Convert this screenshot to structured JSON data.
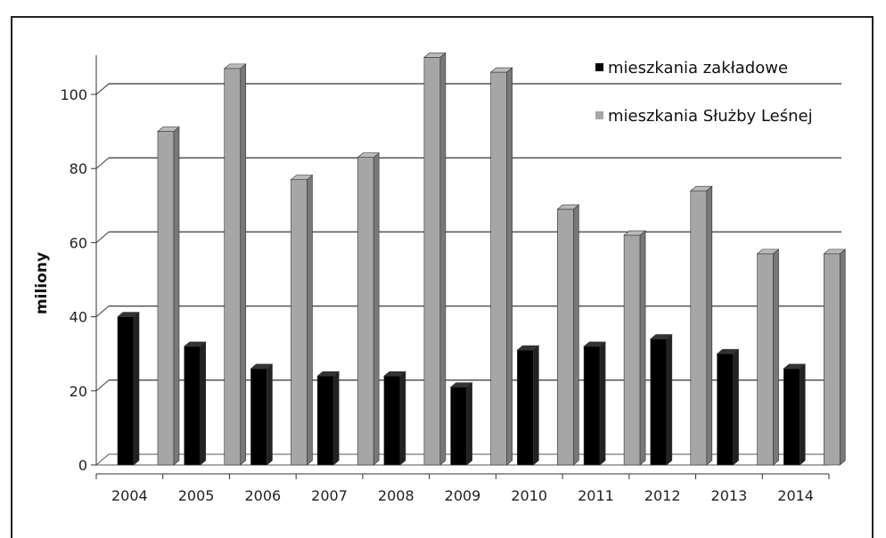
{
  "chart_data": {
    "type": "bar",
    "categories": [
      "2004",
      "2005",
      "2006",
      "2007",
      "2008",
      "2009",
      "2010",
      "2011",
      "2012",
      "2013",
      "2014"
    ],
    "series": [
      {
        "name": "mieszkania zakładowe",
        "color": "#000000",
        "values": [
          40,
          32,
          26,
          24,
          24,
          21,
          31,
          32,
          34,
          30,
          26
        ]
      },
      {
        "name": "mieszkania Służby Leśnej",
        "color": "#a6a6a6",
        "values": [
          90,
          107,
          77,
          83,
          110,
          106,
          69,
          62,
          74,
          57,
          57
        ]
      }
    ],
    "y_ticks": [
      "0",
      "20",
      "40",
      "60",
      "80",
      "100"
    ],
    "ylabel": "miliony",
    "xlabel": "",
    "title": "",
    "ylim": [
      0,
      100
    ],
    "grid": true,
    "legend_position": "top-right",
    "style": "3d-columns"
  }
}
